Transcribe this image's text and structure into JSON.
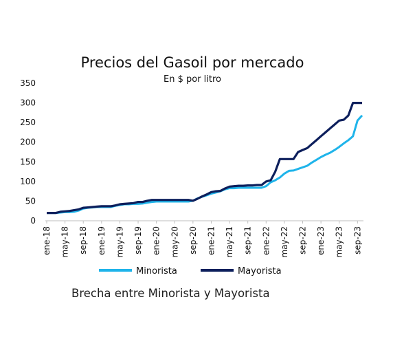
{
  "chart_data": {
    "type": "line",
    "title": "Precios del Gasoil por mercado",
    "subtitle": "En $ por litro",
    "caption": "Brecha entre Minorista y Mayorista",
    "xlabel": "",
    "ylabel": "",
    "ylim": [
      0,
      350
    ],
    "yticks": [
      0,
      50,
      100,
      150,
      200,
      250,
      300,
      350
    ],
    "xtick_labels": [
      "ene-18",
      "may-18",
      "sep-18",
      "ene-19",
      "may-19",
      "sep-19",
      "ene-20",
      "may-20",
      "sep-20",
      "ene-21",
      "may-21",
      "sep-21",
      "ene-22",
      "may-22",
      "sep-22",
      "ene-23",
      "may-23",
      "sep-23"
    ],
    "grid": false,
    "legend_position": "bottom",
    "colors": {
      "Minorista": "#1fb4ea",
      "Mayorista": "#0d1f5c"
    },
    "x": [
      "ene-18",
      "feb-18",
      "mar-18",
      "abr-18",
      "may-18",
      "jun-18",
      "jul-18",
      "ago-18",
      "sep-18",
      "oct-18",
      "nov-18",
      "dic-18",
      "ene-19",
      "feb-19",
      "mar-19",
      "abr-19",
      "may-19",
      "jun-19",
      "jul-19",
      "ago-19",
      "sep-19",
      "oct-19",
      "nov-19",
      "dic-19",
      "ene-20",
      "feb-20",
      "mar-20",
      "abr-20",
      "may-20",
      "jun-20",
      "jul-20",
      "ago-20",
      "sep-20",
      "oct-20",
      "nov-20",
      "dic-20",
      "ene-21",
      "feb-21",
      "mar-21",
      "abr-21",
      "may-21",
      "jun-21",
      "jul-21",
      "ago-21",
      "sep-21",
      "oct-21",
      "nov-21",
      "dic-21",
      "ene-22",
      "feb-22",
      "mar-22",
      "abr-22",
      "may-22",
      "jun-22",
      "jul-22",
      "ago-22",
      "sep-22",
      "oct-22",
      "nov-22",
      "dic-22",
      "ene-23",
      "feb-23",
      "mar-23",
      "abr-23",
      "may-23",
      "jun-23",
      "jul-23",
      "ago-23",
      "sep-23",
      "oct-23"
    ],
    "series": [
      {
        "name": "Minorista",
        "values": [
          20,
          20,
          20,
          21,
          22,
          22,
          23,
          26,
          31,
          33,
          34,
          35,
          35,
          35,
          35,
          38,
          40,
          42,
          42,
          43,
          43,
          44,
          46,
          48,
          49,
          49,
          49,
          49,
          49,
          49,
          49,
          49,
          51,
          57,
          61,
          65,
          69,
          72,
          75,
          80,
          83,
          83,
          84,
          84,
          84,
          84,
          84,
          84,
          88,
          98,
          103,
          110,
          120,
          127,
          128,
          132,
          136,
          140,
          148,
          155,
          162,
          168,
          173,
          180,
          188,
          197,
          205,
          215,
          255,
          268
        ]
      },
      {
        "name": "Mayorista",
        "values": [
          20,
          20,
          20,
          23,
          24,
          25,
          27,
          29,
          33,
          34,
          35,
          36,
          37,
          37,
          37,
          39,
          42,
          43,
          44,
          45,
          48,
          48,
          51,
          53,
          53,
          53,
          53,
          53,
          53,
          53,
          53,
          53,
          51,
          56,
          62,
          67,
          73,
          75,
          76,
          82,
          87,
          88,
          89,
          89,
          90,
          90,
          91,
          91,
          100,
          103,
          125,
          157,
          157,
          157,
          157,
          175,
          180,
          185,
          195,
          205,
          215,
          225,
          235,
          245,
          255,
          257,
          268,
          300,
          300,
          300
        ]
      }
    ]
  }
}
